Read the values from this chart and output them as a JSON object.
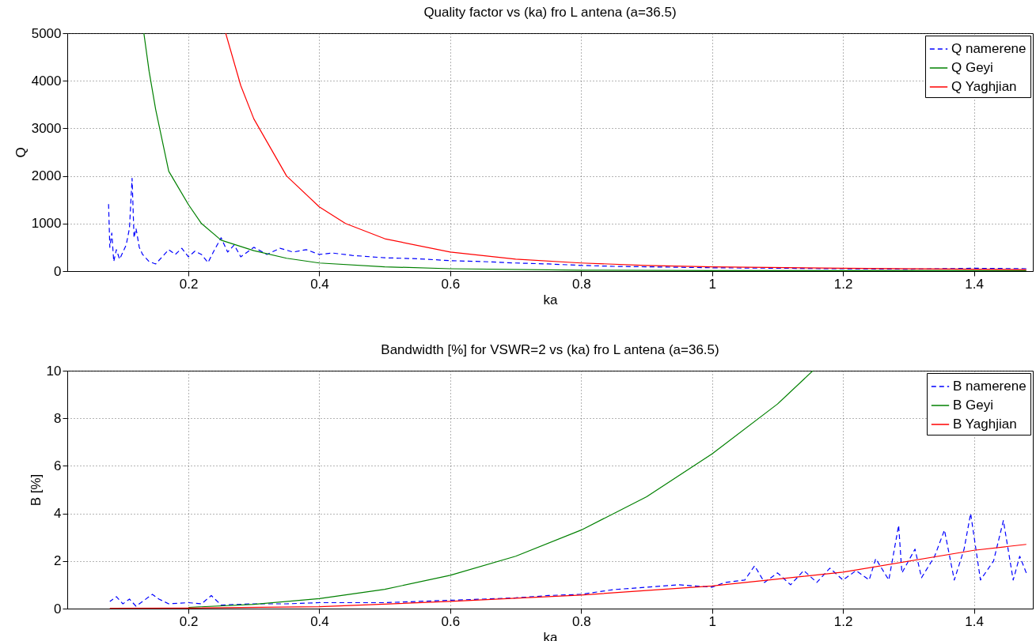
{
  "chart_data": [
    {
      "type": "line",
      "title": "Quality factor vs (ka) fro L antena (a=36.5)",
      "xlabel": "ka",
      "ylabel": "Q",
      "xlim": [
        0.015,
        1.49
      ],
      "xticks": [
        0.2,
        0.4,
        0.6,
        0.8,
        1,
        1.2,
        1.4
      ],
      "ylim": [
        0,
        5000
      ],
      "yticks": [
        0,
        1000,
        2000,
        3000,
        4000,
        5000
      ],
      "grid": true,
      "legend": "top right",
      "series": [
        {
          "name": "Q namerene",
          "color": "#0000ff",
          "line_style": "dashed",
          "x": [
            0.078,
            0.08,
            0.083,
            0.086,
            0.09,
            0.095,
            0.1,
            0.105,
            0.11,
            0.114,
            0.117,
            0.12,
            0.125,
            0.13,
            0.14,
            0.15,
            0.16,
            0.17,
            0.18,
            0.19,
            0.2,
            0.21,
            0.22,
            0.23,
            0.24,
            0.25,
            0.26,
            0.27,
            0.28,
            0.3,
            0.32,
            0.34,
            0.36,
            0.38,
            0.4,
            0.42,
            0.45,
            0.5,
            0.55,
            0.6,
            0.65,
            0.7,
            0.75,
            0.8,
            0.85,
            0.9,
            1.0,
            1.1,
            1.2,
            1.3,
            1.4,
            1.48
          ],
          "values": [
            1450,
            500,
            800,
            200,
            450,
            250,
            400,
            550,
            900,
            1950,
            700,
            900,
            500,
            350,
            200,
            150,
            300,
            450,
            350,
            480,
            300,
            420,
            350,
            180,
            450,
            700,
            400,
            550,
            300,
            500,
            350,
            480,
            400,
            450,
            350,
            380,
            330,
            280,
            260,
            220,
            200,
            170,
            150,
            120,
            100,
            90,
            70,
            60,
            50,
            40,
            60,
            50
          ]
        },
        {
          "name": "Q Geyi",
          "color": "#008000",
          "x": [
            0.132,
            0.14,
            0.15,
            0.17,
            0.2,
            0.22,
            0.25,
            0.3,
            0.35,
            0.4,
            0.5,
            0.6,
            0.8,
            1.0,
            1.2,
            1.48
          ],
          "values": [
            5000,
            4200,
            3400,
            2100,
            1400,
            1000,
            650,
            430,
            270,
            170,
            90,
            50,
            20,
            10,
            10,
            10
          ]
        },
        {
          "name": "Q Yaghjian",
          "color": "#ff0000",
          "x": [
            0.257,
            0.28,
            0.3,
            0.35,
            0.4,
            0.44,
            0.5,
            0.6,
            0.7,
            0.8,
            0.9,
            1.0,
            1.2,
            1.4,
            1.48
          ],
          "values": [
            5000,
            3900,
            3200,
            2000,
            1350,
            1000,
            680,
            400,
            250,
            170,
            120,
            90,
            60,
            40,
            30
          ]
        }
      ]
    },
    {
      "type": "line",
      "title": "Bandwidth [%] for VSWR=2  vs (ka) fro L antena (a=36.5)",
      "xlabel": "ka",
      "ylabel": "B [%]",
      "xlim": [
        0.015,
        1.49
      ],
      "xticks": [
        0.2,
        0.4,
        0.6,
        0.8,
        1,
        1.2,
        1.4
      ],
      "ylim": [
        0,
        10
      ],
      "yticks": [
        0,
        2,
        4,
        6,
        8,
        10
      ],
      "grid": true,
      "legend": "top right",
      "series": [
        {
          "name": "B namerene",
          "color": "#0000ff",
          "line_style": "dashed",
          "x": [
            0.08,
            0.09,
            0.1,
            0.11,
            0.12,
            0.13,
            0.145,
            0.155,
            0.17,
            0.2,
            0.22,
            0.235,
            0.25,
            0.3,
            0.35,
            0.4,
            0.5,
            0.6,
            0.7,
            0.75,
            0.8,
            0.85,
            0.9,
            0.95,
            1.0,
            1.02,
            1.05,
            1.065,
            1.08,
            1.1,
            1.12,
            1.14,
            1.16,
            1.18,
            1.2,
            1.22,
            1.24,
            1.25,
            1.27,
            1.285,
            1.29,
            1.31,
            1.32,
            1.34,
            1.355,
            1.37,
            1.385,
            1.395,
            1.41,
            1.43,
            1.445,
            1.46,
            1.47,
            1.48
          ],
          "values": [
            0.3,
            0.5,
            0.2,
            0.4,
            0.1,
            0.3,
            0.6,
            0.4,
            0.2,
            0.25,
            0.2,
            0.55,
            0.15,
            0.2,
            0.2,
            0.25,
            0.25,
            0.35,
            0.45,
            0.55,
            0.6,
            0.8,
            0.9,
            1.0,
            0.9,
            1.1,
            1.2,
            1.8,
            1.1,
            1.5,
            1.0,
            1.6,
            1.1,
            1.7,
            1.2,
            1.6,
            1.2,
            2.1,
            1.2,
            3.5,
            1.5,
            2.5,
            1.3,
            2.2,
            3.3,
            1.2,
            2.5,
            4.0,
            1.2,
            2.0,
            3.7,
            1.2,
            2.2,
            1.5
          ]
        },
        {
          "name": "B Geyi",
          "color": "#008000",
          "x": [
            0.2,
            0.3,
            0.4,
            0.5,
            0.6,
            0.7,
            0.8,
            0.9,
            1.0,
            1.1,
            1.154
          ],
          "values": [
            0.05,
            0.18,
            0.42,
            0.81,
            1.4,
            2.2,
            3.3,
            4.7,
            6.5,
            8.6,
            10
          ]
        },
        {
          "name": "B Yaghjian",
          "color": "#ff0000",
          "x": [
            0.08,
            0.2,
            0.4,
            0.6,
            0.8,
            1.0,
            1.2,
            1.4,
            1.48
          ],
          "values": [
            0.01,
            0.02,
            0.08,
            0.3,
            0.57,
            0.95,
            1.53,
            2.45,
            2.7
          ]
        }
      ]
    }
  ]
}
